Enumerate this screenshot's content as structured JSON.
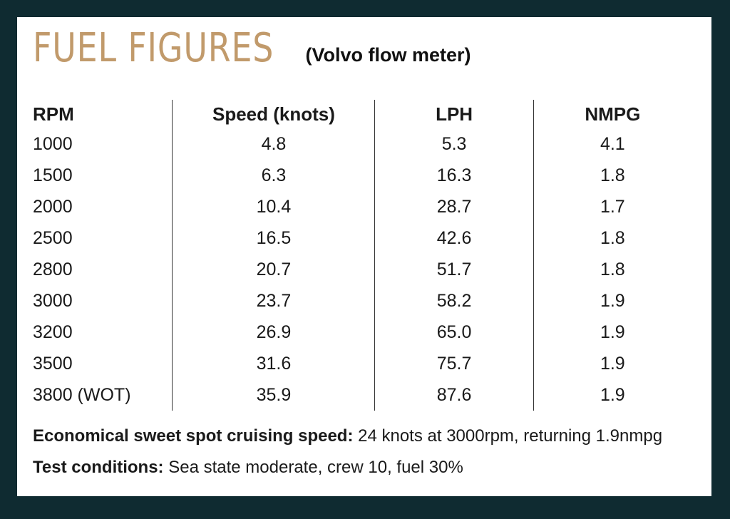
{
  "header": {
    "title": "FUEL FIGURES",
    "subtitle": "(Volvo flow meter)"
  },
  "table": {
    "columns": [
      "RPM",
      "Speed (knots)",
      "LPH",
      "NMPG"
    ],
    "rows": [
      [
        "1000",
        "4.8",
        "5.3",
        "4.1"
      ],
      [
        "1500",
        "6.3",
        "16.3",
        "1.8"
      ],
      [
        "2000",
        "10.4",
        "28.7",
        "1.7"
      ],
      [
        "2500",
        "16.5",
        "42.6",
        "1.8"
      ],
      [
        "2800",
        "20.7",
        "51.7",
        "1.8"
      ],
      [
        "3000",
        "23.7",
        "58.2",
        "1.9"
      ],
      [
        "3200",
        "26.9",
        "65.0",
        "1.9"
      ],
      [
        "3500",
        "31.6",
        "75.7",
        "1.9"
      ],
      [
        "3800 (WOT)",
        "35.9",
        "87.6",
        "1.9"
      ]
    ]
  },
  "notes": {
    "sweet_spot_label": "Economical sweet spot cruising speed:",
    "sweet_spot_text": " 24 knots at 3000rpm, returning 1.9nmpg ",
    "conditions_label": "Test conditions:",
    "conditions_text": " Sea state moderate, crew 10, fuel 30%"
  },
  "colors": {
    "frame": "#0f2b31",
    "title": "#c19a6b",
    "text": "#1a1a1a"
  }
}
